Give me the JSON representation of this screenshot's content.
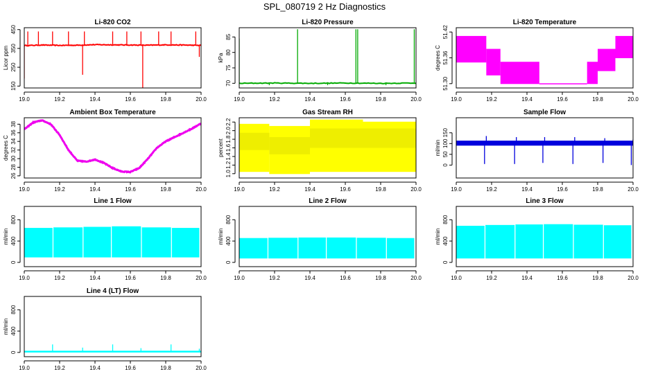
{
  "figure_title": "SPL_080719  2 Hz Diagnostics",
  "chart_data": [
    {
      "type": "line",
      "title": "Li-820 CO2",
      "ylabel": "Licor ppm",
      "xlim": [
        19.0,
        20.0
      ],
      "ylim": [
        140,
        460
      ],
      "x_ticks": [
        19.0,
        19.2,
        19.4,
        19.6,
        19.8,
        20.0
      ],
      "x_tick_labels": [
        "19.0",
        "19.2",
        "19.4",
        "19.6",
        "19.8",
        "20.0"
      ],
      "y_ticks": [
        150,
        250,
        350,
        450
      ],
      "y_tick_labels": [
        "150",
        "250",
        "350",
        "450"
      ],
      "color": "#ff0000",
      "series": [
        {
          "x": [
            19.0,
            19.1,
            19.2,
            19.3,
            19.4,
            19.5,
            19.6,
            19.7,
            19.8,
            19.9,
            20.0
          ],
          "y": [
            365,
            368,
            366,
            367,
            370,
            369,
            368,
            367,
            369,
            368,
            366
          ]
        }
      ],
      "spikes": [
        {
          "x": 19.0,
          "y": 190
        },
        {
          "x": 19.02,
          "y": 440
        },
        {
          "x": 19.08,
          "y": 440
        },
        {
          "x": 19.16,
          "y": 440
        },
        {
          "x": 19.25,
          "y": 440
        },
        {
          "x": 19.33,
          "y": 210
        },
        {
          "x": 19.34,
          "y": 440
        },
        {
          "x": 19.5,
          "y": 440
        },
        {
          "x": 19.58,
          "y": 440
        },
        {
          "x": 19.66,
          "y": 440
        },
        {
          "x": 19.67,
          "y": 140
        },
        {
          "x": 19.76,
          "y": 440
        },
        {
          "x": 19.83,
          "y": 440
        },
        {
          "x": 19.97,
          "y": 440
        },
        {
          "x": 19.99,
          "y": 305
        }
      ]
    },
    {
      "type": "line",
      "title": "Li-820 Pressure",
      "ylabel": "kPa",
      "xlim": [
        19.0,
        20.0
      ],
      "ylim": [
        68.5,
        88
      ],
      "x_ticks": [
        19.0,
        19.2,
        19.4,
        19.6,
        19.8,
        20.0
      ],
      "x_tick_labels": [
        "19.0",
        "19.2",
        "19.4",
        "19.6",
        "19.8",
        "20.0"
      ],
      "y_ticks": [
        70,
        75,
        80,
        85
      ],
      "y_tick_labels": [
        "70",
        "75",
        "80",
        "85"
      ],
      "color": "#00aa00",
      "series": [
        {
          "x": [
            19.0,
            19.2,
            19.4,
            19.6,
            19.8,
            20.0
          ],
          "y": [
            70.0,
            70.1,
            70.0,
            70.1,
            70.0,
            70.1
          ]
        }
      ],
      "spikes": [
        {
          "x": 19.0,
          "y": 84.5
        },
        {
          "x": 19.33,
          "y": 87.5
        },
        {
          "x": 19.66,
          "y": 87.5
        },
        {
          "x": 19.67,
          "y": 87.5
        },
        {
          "x": 19.99,
          "y": 87.5
        },
        {
          "x": 19.17,
          "y": 69.4
        },
        {
          "x": 19.5,
          "y": 69.4
        },
        {
          "x": 19.83,
          "y": 69.4
        }
      ]
    },
    {
      "type": "area",
      "title": "Li-820 Temperature",
      "ylabel": "degrees C",
      "xlim": [
        19.0,
        20.0
      ],
      "ylim": [
        51.29,
        51.43
      ],
      "x_ticks": [
        19.0,
        19.2,
        19.4,
        19.6,
        19.8,
        20.0
      ],
      "x_tick_labels": [
        "19.0",
        "19.2",
        "19.4",
        "19.6",
        "19.8",
        "20.0"
      ],
      "y_ticks": [
        51.3,
        51.36,
        51.42
      ],
      "y_tick_labels": [
        "51.30",
        "51.36",
        "51.42"
      ],
      "color": "#ff00ff",
      "bands": [
        {
          "x0": 19.0,
          "x1": 19.17,
          "lo": 51.35,
          "hi": 51.41
        },
        {
          "x0": 19.17,
          "x1": 19.25,
          "lo": 51.32,
          "hi": 51.38
        },
        {
          "x0": 19.25,
          "x1": 19.47,
          "lo": 51.3,
          "hi": 51.35
        },
        {
          "x0": 19.47,
          "x1": 19.74,
          "lo": 51.3,
          "hi": 51.3
        },
        {
          "x0": 19.74,
          "x1": 19.8,
          "lo": 51.3,
          "hi": 51.35
        },
        {
          "x0": 19.8,
          "x1": 19.9,
          "lo": 51.33,
          "hi": 51.38
        },
        {
          "x0": 19.9,
          "x1": 20.0,
          "lo": 51.36,
          "hi": 51.41
        }
      ]
    },
    {
      "type": "line",
      "title": "Ambient Box Temperature",
      "ylabel": "degrees C",
      "xlim": [
        19.0,
        20.0
      ],
      "ylim": [
        25.5,
        39.5
      ],
      "x_ticks": [
        19.0,
        19.2,
        19.4,
        19.6,
        19.8,
        20.0
      ],
      "x_tick_labels": [
        "19.0",
        "19.2",
        "19.4",
        "19.6",
        "19.8",
        "20.0"
      ],
      "y_ticks": [
        26,
        28,
        30,
        32,
        34,
        36,
        38
      ],
      "y_tick_labels": [
        "26",
        "28",
        "30",
        "32",
        "34",
        "36",
        "38"
      ],
      "color": "#ee00ee",
      "series": [
        {
          "x": [
            19.0,
            19.05,
            19.1,
            19.15,
            19.2,
            19.25,
            19.3,
            19.35,
            19.4,
            19.45,
            19.5,
            19.55,
            19.6,
            19.65,
            19.7,
            19.75,
            19.8,
            19.85,
            19.9,
            19.95,
            20.0
          ],
          "y": [
            36.8,
            38.4,
            38.9,
            38.0,
            35.5,
            32.0,
            29.5,
            29.3,
            29.8,
            29.0,
            27.8,
            27.0,
            26.9,
            27.8,
            30.0,
            32.5,
            34.0,
            35.0,
            36.0,
            37.0,
            38.2
          ]
        }
      ]
    },
    {
      "type": "area",
      "title": "Gas Stream RH",
      "ylabel": "percent",
      "xlim": [
        19.0,
        20.0
      ],
      "ylim": [
        0.9,
        2.3
      ],
      "x_ticks": [
        19.0,
        19.2,
        19.4,
        19.6,
        19.8,
        20.0
      ],
      "x_tick_labels": [
        "19.0",
        "19.2",
        "19.4",
        "19.6",
        "19.8",
        "20.0"
      ],
      "y_ticks": [
        1.0,
        1.2,
        1.4,
        1.6,
        1.8,
        2.0,
        2.2
      ],
      "y_tick_labels": [
        "1.0",
        "1.2",
        "1.4",
        "1.6",
        "1.8",
        "2.0",
        "2.2"
      ],
      "color": "#ffff00",
      "bands": [
        {
          "x0": 19.0,
          "x1": 19.17,
          "lo": 1.05,
          "hi": 2.15
        },
        {
          "x0": 19.17,
          "x1": 19.4,
          "lo": 1.0,
          "hi": 2.1
        },
        {
          "x0": 19.4,
          "x1": 19.7,
          "lo": 1.05,
          "hi": 2.25
        },
        {
          "x0": 19.7,
          "x1": 20.0,
          "lo": 1.05,
          "hi": 2.2
        }
      ],
      "bands_upper_core": [
        {
          "x0": 19.0,
          "x1": 19.17,
          "lo": 1.55,
          "hi": 1.95
        },
        {
          "x0": 19.17,
          "x1": 19.4,
          "lo": 1.45,
          "hi": 1.85
        },
        {
          "x0": 19.4,
          "x1": 20.0,
          "lo": 1.6,
          "hi": 2.05
        }
      ]
    },
    {
      "type": "line",
      "title": "Sample Flow",
      "ylabel": "ml/min",
      "xlim": [
        19.0,
        20.0
      ],
      "ylim": [
        -60,
        220
      ],
      "x_ticks": [
        19.0,
        19.2,
        19.4,
        19.6,
        19.8,
        20.0
      ],
      "x_tick_labels": [
        "19.0",
        "19.2",
        "19.4",
        "19.6",
        "19.8",
        "20.0"
      ],
      "y_ticks": [
        0,
        50,
        100,
        150
      ],
      "y_tick_labels": [
        "0",
        "50",
        "100",
        "150"
      ],
      "color": "#0000dd",
      "bands": [
        {
          "x0": 19.0,
          "x1": 20.0,
          "lo": 92,
          "hi": 112
        }
      ],
      "spikes": [
        {
          "x": 19.16,
          "y": 5
        },
        {
          "x": 19.17,
          "y": 135
        },
        {
          "x": 19.33,
          "y": 5
        },
        {
          "x": 19.34,
          "y": 130
        },
        {
          "x": 19.49,
          "y": 10
        },
        {
          "x": 19.5,
          "y": 130
        },
        {
          "x": 19.66,
          "y": 5
        },
        {
          "x": 19.67,
          "y": 130
        },
        {
          "x": 19.83,
          "y": 10
        },
        {
          "x": 19.84,
          "y": 125
        },
        {
          "x": 19.99,
          "y": 0
        },
        {
          "x": 20.0,
          "y": 120
        }
      ]
    },
    {
      "type": "area",
      "title": "Line 1 Flow",
      "ylabel": "ml/min",
      "xlim": [
        19.0,
        20.0
      ],
      "ylim": [
        -80,
        1050
      ],
      "x_ticks": [
        19.0,
        19.2,
        19.4,
        19.6,
        19.8,
        20.0
      ],
      "x_tick_labels": [
        "19.0",
        "19.2",
        "19.4",
        "19.6",
        "19.8",
        "20.0"
      ],
      "y_ticks": [
        0,
        400,
        800
      ],
      "y_tick_labels": [
        "0",
        "400",
        "800"
      ],
      "color": "#00ffff",
      "bands": [
        {
          "x0": 19.0,
          "x1": 19.16,
          "lo": 100,
          "hi": 640
        },
        {
          "x0": 19.165,
          "x1": 19.33,
          "lo": 100,
          "hi": 650
        },
        {
          "x0": 19.335,
          "x1": 19.49,
          "lo": 100,
          "hi": 660
        },
        {
          "x0": 19.495,
          "x1": 19.66,
          "lo": 100,
          "hi": 670
        },
        {
          "x0": 19.665,
          "x1": 19.83,
          "lo": 100,
          "hi": 650
        },
        {
          "x0": 19.835,
          "x1": 19.99,
          "lo": 100,
          "hi": 640
        }
      ]
    },
    {
      "type": "area",
      "title": "Line 2 Flow",
      "ylabel": "ml/min",
      "xlim": [
        19.0,
        20.0
      ],
      "ylim": [
        -80,
        1050
      ],
      "x_ticks": [
        19.0,
        19.2,
        19.4,
        19.6,
        19.8,
        20.0
      ],
      "x_tick_labels": [
        "19.0",
        "19.2",
        "19.4",
        "19.6",
        "19.8",
        "20.0"
      ],
      "y_ticks": [
        0,
        400,
        800
      ],
      "y_tick_labels": [
        "0",
        "400",
        "800"
      ],
      "color": "#00ffff",
      "bands": [
        {
          "x0": 19.0,
          "x1": 19.16,
          "lo": 80,
          "hi": 450
        },
        {
          "x0": 19.165,
          "x1": 19.33,
          "lo": 80,
          "hi": 455
        },
        {
          "x0": 19.335,
          "x1": 19.49,
          "lo": 80,
          "hi": 460
        },
        {
          "x0": 19.495,
          "x1": 19.66,
          "lo": 80,
          "hi": 460
        },
        {
          "x0": 19.665,
          "x1": 19.83,
          "lo": 80,
          "hi": 455
        },
        {
          "x0": 19.835,
          "x1": 19.99,
          "lo": 80,
          "hi": 450
        }
      ]
    },
    {
      "type": "area",
      "title": "Line 3 Flow",
      "ylabel": "ml/min",
      "xlim": [
        19.0,
        20.0
      ],
      "ylim": [
        -80,
        1050
      ],
      "x_ticks": [
        19.0,
        19.2,
        19.4,
        19.6,
        19.8,
        20.0
      ],
      "x_tick_labels": [
        "19.0",
        "19.2",
        "19.4",
        "19.6",
        "19.8",
        "20.0"
      ],
      "y_ticks": [
        0,
        400,
        800
      ],
      "y_tick_labels": [
        "0",
        "400",
        "800"
      ],
      "color": "#00ffff",
      "bands": [
        {
          "x0": 19.0,
          "x1": 19.16,
          "lo": 80,
          "hi": 680
        },
        {
          "x0": 19.165,
          "x1": 19.33,
          "lo": 80,
          "hi": 695
        },
        {
          "x0": 19.335,
          "x1": 19.49,
          "lo": 80,
          "hi": 705
        },
        {
          "x0": 19.495,
          "x1": 19.66,
          "lo": 80,
          "hi": 710
        },
        {
          "x0": 19.665,
          "x1": 19.83,
          "lo": 80,
          "hi": 700
        },
        {
          "x0": 19.835,
          "x1": 19.99,
          "lo": 80,
          "hi": 690
        }
      ]
    },
    {
      "type": "line",
      "title": "Line 4 (LT) Flow",
      "ylabel": "ml/min",
      "xlim": [
        19.0,
        20.0
      ],
      "ylim": [
        -80,
        1050
      ],
      "x_ticks": [
        19.0,
        19.2,
        19.4,
        19.6,
        19.8,
        20.0
      ],
      "x_tick_labels": [
        "19.0",
        "19.2",
        "19.4",
        "19.6",
        "19.8",
        "20.0"
      ],
      "y_ticks": [
        0,
        400,
        800
      ],
      "y_tick_labels": [
        "0",
        "400",
        "800"
      ],
      "color": "#00ffff",
      "bands": [
        {
          "x0": 19.0,
          "x1": 20.0,
          "lo": 5,
          "hi": 25
        }
      ],
      "spikes": [
        {
          "x": 19.16,
          "y": 150
        },
        {
          "x": 19.33,
          "y": 90
        },
        {
          "x": 19.5,
          "y": 150
        },
        {
          "x": 19.66,
          "y": 80
        },
        {
          "x": 19.83,
          "y": 150
        },
        {
          "x": 19.99,
          "y": 70
        }
      ]
    }
  ]
}
